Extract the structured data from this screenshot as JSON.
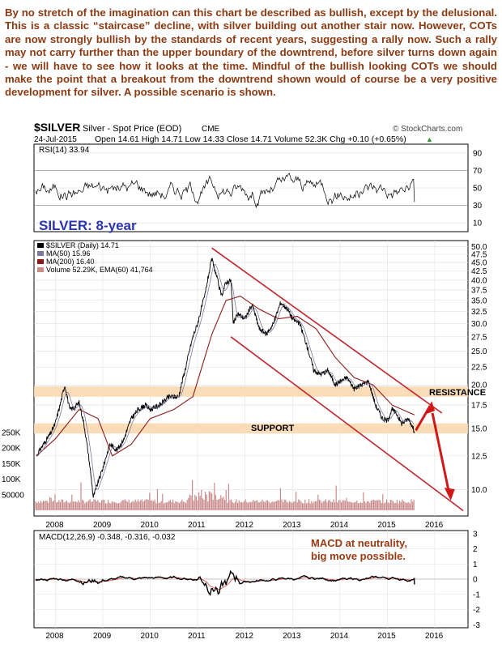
{
  "commentary": "By no stretch of the imagination can this chart be described as bullish, except by the delusional. This is a classic “staircase” decline, with silver building out another stair now. However, COTs are now strongly bullish by the standards of recent years, suggesting a rally now. Such a rally may not carry further than the upper boundary of the downtrend, before silver turns down again - we will have to see how it looks at the time. Mindful of the bullish looking COTs we should make the point that a breakout from the downtrend shown would of course be a very positive development for silver. A possible scenario is shown.",
  "header": {
    "symbol": "$SILVER",
    "description": "Silver - Spot Price (EOD)",
    "exchange": "CME",
    "watermark": "© StockCharts.com",
    "date": "24-Jul-2015",
    "quote": "Open 14.61  High 14.71  Low 14.33  Close 14.71  Volume 52.3K  Chg +0.10 (+0.65%)",
    "quote_arrow": "▲"
  },
  "colors": {
    "price": "#000000",
    "ma50": "#7a7aa0",
    "ma200": "#8b1a1a",
    "volume": "#c98a8a",
    "channel": "#c0272d",
    "arrow": "#d01818",
    "zone": "#fbd8b0",
    "macd": "#000000",
    "signal": "#e23b3b",
    "title_blue": "#2b35b0",
    "annotation": "#9b3a12"
  },
  "chart_data": [
    {
      "type": "line",
      "panel": "RSI",
      "legend": "RSI(14) 33.94",
      "yticks": [
        10,
        30,
        50,
        70,
        90
      ],
      "ylim": [
        0,
        100
      ],
      "x_ticks": [
        "2008",
        "2009",
        "2010",
        "2011",
        "2012",
        "2013",
        "2014",
        "2015",
        "2016"
      ]
    },
    {
      "type": "line",
      "panel": "price",
      "title": "SILVER: 8-year",
      "legend": [
        {
          "name": "$SILVER (Daily) 14.71"
        },
        {
          "name": "MA(50) 15.96"
        },
        {
          "name": "MA(200) 16.40"
        },
        {
          "name": "Volume 52.29K, EMA(60) 41,764"
        }
      ],
      "x_ticks": [
        "2008",
        "2009",
        "2010",
        "2011",
        "2012",
        "2013",
        "2014",
        "2015",
        "2016"
      ],
      "x_range": [
        2007.55,
        2016.7
      ],
      "y_ticks": [
        10.0,
        12.5,
        15.0,
        17.5,
        20.0,
        22.5,
        25.0,
        27.5,
        30.0,
        32.5,
        35.0,
        37.5,
        40.0,
        42.5,
        45.0,
        47.5,
        50.0
      ],
      "y_scale": "log",
      "volume_ticks": [
        "250K",
        "200K",
        "150K",
        "100K",
        "50000"
      ],
      "volume_values": [
        250000,
        200000,
        150000,
        100000,
        50000
      ],
      "series": [
        {
          "name": "$SILVER (Daily) 14.71",
          "x": [
            2007.6,
            2007.75,
            2007.9,
            2008.0,
            2008.1,
            2008.2,
            2008.3,
            2008.4,
            2008.5,
            2008.6,
            2008.7,
            2008.8,
            2008.9,
            2009.0,
            2009.15,
            2009.3,
            2009.45,
            2009.6,
            2009.75,
            2009.9,
            2010.0,
            2010.2,
            2010.4,
            2010.6,
            2010.75,
            2010.9,
            2011.0,
            2011.15,
            2011.3,
            2011.4,
            2011.5,
            2011.6,
            2011.7,
            2011.75,
            2011.85,
            2012.0,
            2012.15,
            2012.3,
            2012.45,
            2012.6,
            2012.75,
            2012.9,
            2013.0,
            2013.15,
            2013.3,
            2013.45,
            2013.6,
            2013.75,
            2013.9,
            2014.0,
            2014.15,
            2014.3,
            2014.45,
            2014.6,
            2014.75,
            2014.9,
            2015.0,
            2015.1,
            2015.2,
            2015.3,
            2015.45,
            2015.57
          ],
          "values": [
            12.5,
            13.5,
            14.5,
            15.5,
            17.5,
            20.0,
            17.0,
            17.2,
            17.8,
            15.5,
            12.5,
            9.5,
            10.5,
            11.5,
            13.5,
            13.0,
            14.0,
            16.0,
            17.0,
            17.5,
            17.0,
            17.5,
            18.5,
            18.5,
            22.5,
            27.5,
            30.0,
            36.0,
            46.0,
            41.0,
            36.0,
            39.5,
            40.0,
            30.0,
            32.0,
            31.0,
            34.0,
            29.0,
            28.0,
            30.0,
            34.5,
            33.0,
            31.0,
            30.0,
            26.0,
            22.0,
            21.5,
            22.0,
            20.0,
            20.5,
            21.0,
            19.5,
            20.0,
            20.5,
            17.5,
            16.0,
            15.8,
            17.0,
            16.5,
            15.5,
            16.0,
            14.71
          ]
        },
        {
          "name": "MA(200) 16.40",
          "x": [
            2007.6,
            2008.0,
            2008.5,
            2008.9,
            2009.2,
            2009.6,
            2010.0,
            2010.5,
            2010.9,
            2011.3,
            2011.6,
            2011.9,
            2012.3,
            2012.7,
            2013.1,
            2013.5,
            2013.9,
            2014.3,
            2014.7,
            2015.1,
            2015.57
          ],
          "values": [
            12.5,
            14.0,
            17.0,
            16.0,
            12.5,
            13.5,
            16.0,
            17.0,
            18.5,
            28.0,
            35.0,
            36.0,
            33.0,
            31.0,
            31.5,
            29.0,
            24.0,
            21.0,
            20.0,
            17.5,
            16.4
          ]
        }
      ],
      "zones": [
        {
          "label": "RESISTANCE",
          "range": [
            18.5,
            19.8
          ]
        },
        {
          "label": "SUPPORT",
          "range": [
            14.5,
            15.5
          ]
        }
      ],
      "annotations": [
        "RESISTANCE",
        "SUPPORT"
      ]
    },
    {
      "type": "line",
      "panel": "MACD",
      "legend": "MACD(12,26,9) -0.348, -0.316, -0.032",
      "yticks": [
        3,
        2,
        1,
        0,
        -1,
        -2,
        -3
      ],
      "ylim": [
        -3.2,
        3.2
      ],
      "annotation": "MACD at neutrality, big move possible.",
      "x_ticks": [
        "2008",
        "2009",
        "2010",
        "2011",
        "2012",
        "2013",
        "2014",
        "2015",
        "2016"
      ]
    }
  ]
}
